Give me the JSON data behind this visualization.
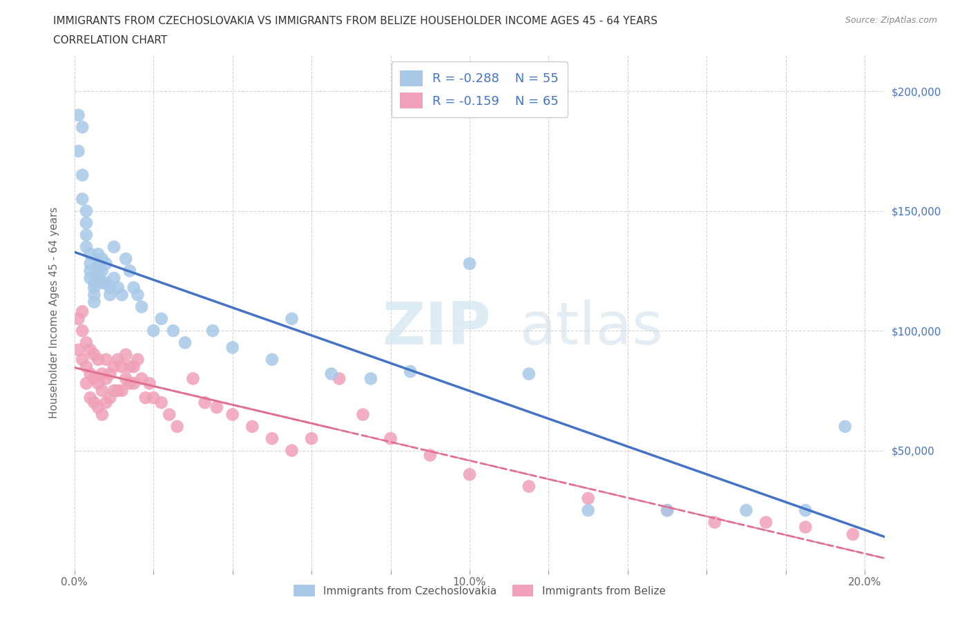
{
  "title_line1": "IMMIGRANTS FROM CZECHOSLOVAKIA VS IMMIGRANTS FROM BELIZE HOUSEHOLDER INCOME AGES 45 - 64 YEARS",
  "title_line2": "CORRELATION CHART",
  "source_text": "Source: ZipAtlas.com",
  "ylabel": "Householder Income Ages 45 - 64 years",
  "watermark_part1": "ZIP",
  "watermark_part2": "atlas",
  "xlim": [
    0.0,
    0.205
  ],
  "ylim": [
    0,
    215000
  ],
  "xtick_positions": [
    0.0,
    0.02,
    0.04,
    0.06,
    0.08,
    0.1,
    0.12,
    0.14,
    0.16,
    0.18,
    0.2
  ],
  "xticklabels": [
    "0.0%",
    "",
    "",
    "",
    "",
    "10.0%",
    "",
    "",
    "",
    "",
    "20.0%"
  ],
  "ytick_vals": [
    0,
    50000,
    100000,
    150000,
    200000
  ],
  "ytick_labels_right": [
    "",
    "$50,000",
    "$100,000",
    "$150,000",
    "$200,000"
  ],
  "blue_scatter_color": "#a8c8e8",
  "pink_scatter_color": "#f0a0b8",
  "blue_line_color": "#4472c4",
  "pink_line_color": "#e07090",
  "legend_text_color": "#4472c4",
  "grid_color": "#d0d0d0",
  "background_color": "#ffffff",
  "legend_R1": "R = -0.288",
  "legend_N1": "N = 55",
  "legend_R2": "R = -0.159",
  "legend_N2": "N = 65",
  "czecho_x": [
    0.001,
    0.001,
    0.002,
    0.002,
    0.002,
    0.003,
    0.003,
    0.003,
    0.003,
    0.004,
    0.004,
    0.004,
    0.004,
    0.005,
    0.005,
    0.005,
    0.005,
    0.006,
    0.006,
    0.006,
    0.006,
    0.007,
    0.007,
    0.007,
    0.008,
    0.008,
    0.009,
    0.009,
    0.01,
    0.01,
    0.011,
    0.012,
    0.013,
    0.014,
    0.015,
    0.016,
    0.017,
    0.02,
    0.022,
    0.025,
    0.028,
    0.035,
    0.04,
    0.05,
    0.055,
    0.065,
    0.075,
    0.085,
    0.1,
    0.115,
    0.13,
    0.15,
    0.17,
    0.185,
    0.195
  ],
  "czecho_y": [
    190000,
    175000,
    185000,
    165000,
    155000,
    150000,
    145000,
    140000,
    135000,
    132000,
    128000,
    125000,
    122000,
    120000,
    118000,
    115000,
    112000,
    132000,
    128000,
    125000,
    122000,
    130000,
    125000,
    120000,
    128000,
    120000,
    118000,
    115000,
    135000,
    122000,
    118000,
    115000,
    130000,
    125000,
    118000,
    115000,
    110000,
    100000,
    105000,
    100000,
    95000,
    100000,
    93000,
    88000,
    105000,
    82000,
    80000,
    83000,
    128000,
    82000,
    25000,
    25000,
    25000,
    25000,
    60000
  ],
  "belize_x": [
    0.001,
    0.001,
    0.002,
    0.002,
    0.002,
    0.003,
    0.003,
    0.003,
    0.004,
    0.004,
    0.004,
    0.005,
    0.005,
    0.005,
    0.006,
    0.006,
    0.006,
    0.007,
    0.007,
    0.007,
    0.008,
    0.008,
    0.008,
    0.009,
    0.009,
    0.01,
    0.01,
    0.011,
    0.011,
    0.012,
    0.012,
    0.013,
    0.013,
    0.014,
    0.014,
    0.015,
    0.015,
    0.016,
    0.017,
    0.018,
    0.019,
    0.02,
    0.022,
    0.024,
    0.026,
    0.03,
    0.033,
    0.036,
    0.04,
    0.045,
    0.05,
    0.055,
    0.06,
    0.067,
    0.073,
    0.08,
    0.09,
    0.1,
    0.115,
    0.13,
    0.15,
    0.162,
    0.175,
    0.185,
    0.197
  ],
  "belize_y": [
    105000,
    92000,
    108000,
    100000,
    88000,
    95000,
    85000,
    78000,
    92000,
    82000,
    72000,
    90000,
    80000,
    70000,
    88000,
    78000,
    68000,
    82000,
    75000,
    65000,
    88000,
    80000,
    70000,
    82000,
    72000,
    85000,
    75000,
    88000,
    75000,
    85000,
    75000,
    90000,
    80000,
    85000,
    78000,
    85000,
    78000,
    88000,
    80000,
    72000,
    78000,
    72000,
    70000,
    65000,
    60000,
    80000,
    70000,
    68000,
    65000,
    60000,
    55000,
    50000,
    55000,
    80000,
    65000,
    55000,
    48000,
    40000,
    35000,
    30000,
    25000,
    20000,
    20000,
    18000,
    15000
  ],
  "bottom_legend_label1": "Immigrants from Czechoslovakia",
  "bottom_legend_label2": "Immigrants from Belize"
}
